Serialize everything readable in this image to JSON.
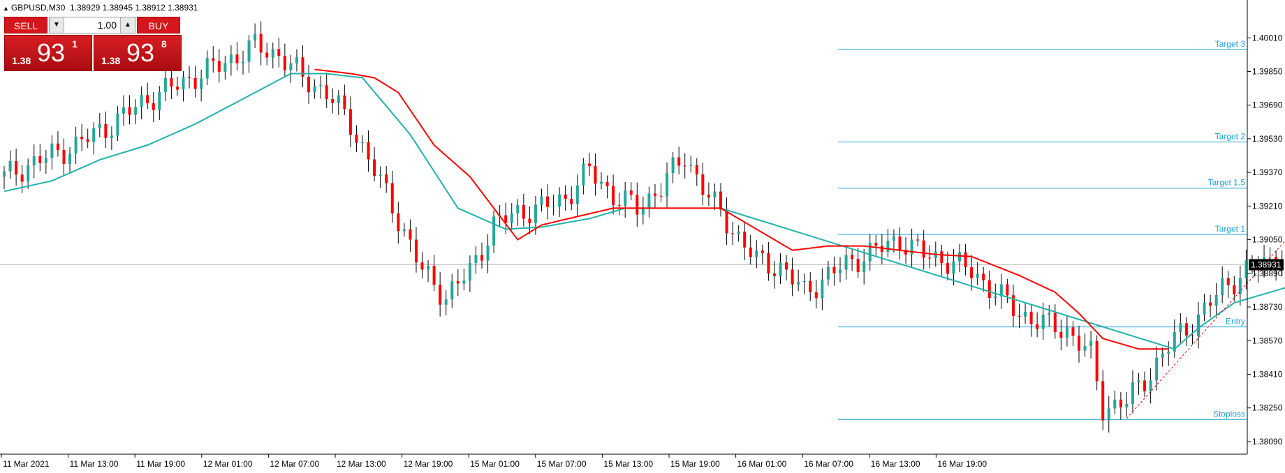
{
  "header": {
    "symbol": "GBPUSD,M30",
    "ohlc": "1.38929 1.38945 1.38912 1.38931"
  },
  "trade_panel": {
    "sell_label": "SELL",
    "buy_label": "BUY",
    "lot_value": "1.00",
    "sell_price": {
      "small": "1.38",
      "big": "93",
      "sup": "1"
    },
    "buy_price": {
      "small": "1.38",
      "big": "93",
      "sup": "8"
    }
  },
  "colors": {
    "bull": "#26a69a",
    "bear": "#ff0000",
    "ma_slow": "#ff0000",
    "ma_fast": "#20b2aa",
    "level": "#1aa0d8",
    "projection": "#000080",
    "current_price_line": "#c0c0c0"
  },
  "chart_data": {
    "type": "candlestick",
    "ylim": [
      1.3803,
      1.4019
    ],
    "y_ticks": [
      "1.40010",
      "1.39850",
      "1.39690",
      "1.39530",
      "1.39370",
      "1.39210",
      "1.39050",
      "1.38890",
      "1.38730",
      "1.38570",
      "1.38410",
      "1.38250",
      "1.38090"
    ],
    "x_labels": [
      "11 Mar 2021",
      "11 Mar 13:00",
      "11 Mar 19:00",
      "12 Mar 01:00",
      "12 Mar 07:00",
      "12 Mar 13:00",
      "12 Mar 19:00",
      "15 Mar 01:00",
      "15 Mar 07:00",
      "15 Mar 13:00",
      "15 Mar 19:00",
      "16 Mar 01:00",
      "16 Mar 07:00",
      "16 Mar 13:00",
      "16 Mar 19:00"
    ],
    "current_price": 1.38931,
    "current_price_label": "1.38931",
    "levels": [
      {
        "name": "Target 3",
        "price": 1.39955
      },
      {
        "name": "Target 2",
        "price": 1.39515
      },
      {
        "name": "Target 1.5",
        "price": 1.39295
      },
      {
        "name": "Target 1",
        "price": 1.39075
      },
      {
        "name": "Entry",
        "price": 1.38635
      },
      {
        "name": "Stoploss",
        "price": 1.38195
      }
    ],
    "price_path": [
      [
        0,
        1.3935
      ],
      [
        6,
        1.3943
      ],
      [
        12,
        1.395
      ],
      [
        18,
        1.396
      ],
      [
        24,
        1.3972
      ],
      [
        30,
        1.398
      ],
      [
        36,
        1.3988
      ],
      [
        42,
        1.3997
      ],
      [
        46,
        1.3993
      ],
      [
        50,
        1.3982
      ],
      [
        54,
        1.3975
      ],
      [
        58,
        1.396
      ],
      [
        62,
        1.3938
      ],
      [
        66,
        1.3915
      ],
      [
        70,
        1.389
      ],
      [
        74,
        1.3878
      ],
      [
        78,
        1.389
      ],
      [
        82,
        1.3912
      ],
      [
        86,
        1.3918
      ],
      [
        90,
        1.392
      ],
      [
        94,
        1.3925
      ],
      [
        98,
        1.3938
      ],
      [
        102,
        1.3926
      ],
      [
        106,
        1.392
      ],
      [
        110,
        1.393
      ],
      [
        114,
        1.3945
      ],
      [
        118,
        1.3925
      ],
      [
        122,
        1.391
      ],
      [
        126,
        1.3895
      ],
      [
        130,
        1.3892
      ],
      [
        134,
        1.388
      ],
      [
        138,
        1.3888
      ],
      [
        142,
        1.3895
      ],
      [
        146,
        1.39
      ],
      [
        150,
        1.3905
      ],
      [
        154,
        1.3898
      ],
      [
        158,
        1.3895
      ],
      [
        162,
        1.389
      ],
      [
        166,
        1.388
      ],
      [
        170,
        1.387
      ],
      [
        174,
        1.3865
      ],
      [
        178,
        1.3862
      ],
      [
        182,
        1.385
      ],
      [
        184,
        1.3825
      ],
      [
        188,
        1.3828
      ],
      [
        192,
        1.3842
      ],
      [
        196,
        1.3858
      ],
      [
        200,
        1.3868
      ],
      [
        204,
        1.3882
      ],
      [
        208,
        1.389
      ],
      [
        212,
        1.3895
      ],
      [
        216,
        1.3902
      ],
      [
        220,
        1.39
      ],
      [
        223,
        1.3893
      ]
    ],
    "ma_slow_path": [
      [
        52,
        1.3986
      ],
      [
        58,
        1.3984
      ],
      [
        62,
        1.3982
      ],
      [
        66,
        1.3975
      ],
      [
        72,
        1.395
      ],
      [
        78,
        1.3935
      ],
      [
        82,
        1.392
      ],
      [
        86,
        1.3905
      ],
      [
        90,
        1.3912
      ],
      [
        96,
        1.3916
      ],
      [
        102,
        1.392
      ],
      [
        106,
        1.392
      ],
      [
        112,
        1.392
      ],
      [
        120,
        1.392
      ],
      [
        126,
        1.391
      ],
      [
        132,
        1.39
      ],
      [
        138,
        1.3902
      ],
      [
        144,
        1.3902
      ],
      [
        150,
        1.39
      ],
      [
        156,
        1.3898
      ],
      [
        162,
        1.3897
      ],
      [
        170,
        1.3888
      ],
      [
        176,
        1.388
      ],
      [
        180,
        1.387
      ],
      [
        184,
        1.3858
      ],
      [
        190,
        1.3853
      ],
      [
        195,
        1.3853
      ]
    ],
    "ma_fast_path": [
      [
        0,
        1.3928
      ],
      [
        8,
        1.3933
      ],
      [
        16,
        1.3943
      ],
      [
        24,
        1.395
      ],
      [
        32,
        1.396
      ],
      [
        40,
        1.3972
      ],
      [
        48,
        1.3984
      ],
      [
        54,
        1.3984
      ],
      [
        60,
        1.3982
      ],
      [
        68,
        1.3955
      ],
      [
        76,
        1.392
      ],
      [
        84,
        1.391
      ],
      [
        90,
        1.3911
      ],
      [
        98,
        1.3915
      ],
      [
        104,
        1.392
      ],
      [
        112,
        1.392
      ],
      [
        120,
        1.392
      ],
      [
        196,
        1.3853
      ],
      [
        200,
        1.3863
      ],
      [
        206,
        1.3875
      ],
      [
        212,
        1.388
      ],
      [
        218,
        1.3885
      ],
      [
        223,
        1.3887
      ]
    ],
    "projection": [
      [
        223,
        1.3893
      ],
      [
        231,
        1.3863
      ],
      [
        248,
        1.3938
      ]
    ],
    "trend_line": [
      [
        188,
        1.382
      ],
      [
        215,
        1.3906
      ]
    ]
  }
}
